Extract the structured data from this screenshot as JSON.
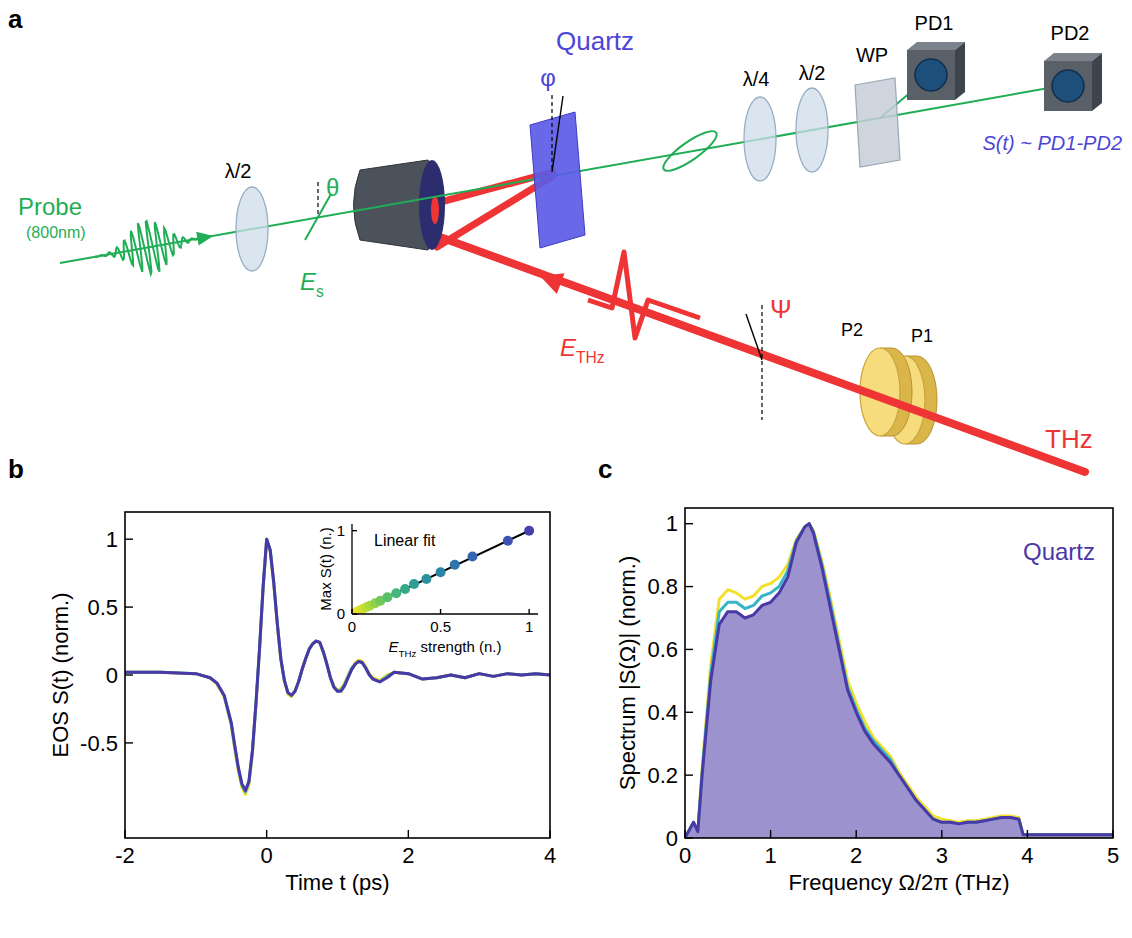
{
  "panel_letters": [
    "a",
    "b",
    "c"
  ],
  "diagram": {
    "probe": "Probe",
    "probe_wavelength": "(800nm)",
    "half_wave_1": "λ/2",
    "theta": "θ",
    "probe_field": [
      "E",
      "s"
    ],
    "crystal": "Quartz",
    "phi": "φ",
    "quarter_wave": "λ/4",
    "half_wave_2": "λ/2",
    "wollaston": "WP",
    "pd1": "PD1",
    "pd2": "PD2",
    "signal": "S(t) ~ PD1-PD2",
    "thz_field": [
      "E",
      "THz"
    ],
    "psi": "Ψ",
    "polarizer_2": "P2",
    "polarizer_1": "P1",
    "thz": "THz"
  },
  "chart_data": [
    {
      "type": "line",
      "xlabel": "Time t (ps)",
      "ylabel": "EOS S(t) (norm.)",
      "x": [
        -2,
        -1.5,
        -1,
        -0.8,
        -0.7,
        -0.6,
        -0.5,
        -0.45,
        -0.4,
        -0.35,
        -0.3,
        -0.25,
        -0.2,
        -0.15,
        -0.1,
        -0.05,
        0,
        0.05,
        0.1,
        0.15,
        0.2,
        0.25,
        0.3,
        0.35,
        0.4,
        0.45,
        0.5,
        0.55,
        0.6,
        0.65,
        0.7,
        0.75,
        0.8,
        0.85,
        0.9,
        0.95,
        1.0,
        1.05,
        1.1,
        1.15,
        1.2,
        1.25,
        1.3,
        1.35,
        1.4,
        1.45,
        1.5,
        1.6,
        1.7,
        1.8,
        2.0,
        2.2,
        2.4,
        2.6,
        2.8,
        3.0,
        3.2,
        3.4,
        3.6,
        3.8,
        4.0
      ],
      "xlim": [
        -2,
        4
      ],
      "xticks": [
        -2,
        0,
        2,
        4
      ],
      "ylim": [
        -1.2,
        1.2
      ],
      "yticks": [
        -0.5,
        0,
        0.5,
        1
      ],
      "series": [
        {
          "color": "#f2e02c",
          "values": [
            0.02,
            0.02,
            0.01,
            -0.02,
            -0.07,
            -0.16,
            -0.37,
            -0.55,
            -0.71,
            -0.83,
            -0.88,
            -0.81,
            -0.57,
            -0.21,
            0.19,
            0.64,
            0.99,
            0.91,
            0.67,
            0.37,
            0.11,
            -0.05,
            -0.14,
            -0.16,
            -0.12,
            -0.05,
            0.04,
            0.12,
            0.19,
            0.23,
            0.25,
            0.24,
            0.17,
            0.08,
            -0.02,
            -0.08,
            -0.11,
            -0.1,
            -0.06,
            0.0,
            0.05,
            0.09,
            0.11,
            0.1,
            0.06,
            0.01,
            -0.02,
            -0.04,
            0.0,
            0.02,
            0.01,
            -0.03,
            -0.02,
            0.0,
            -0.02,
            0.01,
            -0.01,
            0.01,
            0.0,
            0.01,
            0.0
          ]
        },
        {
          "color": "#38b4c8",
          "values": [
            0.02,
            0.02,
            0.01,
            -0.02,
            -0.06,
            -0.15,
            -0.36,
            -0.53,
            -0.69,
            -0.81,
            -0.86,
            -0.79,
            -0.56,
            -0.2,
            0.2,
            0.65,
            1.0,
            0.92,
            0.68,
            0.38,
            0.12,
            -0.04,
            -0.13,
            -0.15,
            -0.12,
            -0.05,
            0.04,
            0.12,
            0.19,
            0.23,
            0.25,
            0.24,
            0.17,
            0.08,
            -0.02,
            -0.09,
            -0.12,
            -0.11,
            -0.07,
            -0.01,
            0.05,
            0.08,
            0.1,
            0.09,
            0.05,
            0.0,
            -0.03,
            -0.05,
            -0.01,
            0.02,
            0.01,
            -0.03,
            -0.02,
            0.0,
            -0.02,
            0.01,
            -0.01,
            0.01,
            0.0,
            0.01,
            0.0
          ]
        },
        {
          "color": "#4a38a6",
          "values": [
            0.02,
            0.02,
            0.01,
            -0.02,
            -0.06,
            -0.15,
            -0.35,
            -0.52,
            -0.68,
            -0.8,
            -0.85,
            -0.78,
            -0.55,
            -0.2,
            0.2,
            0.65,
            1.0,
            0.92,
            0.68,
            0.38,
            0.12,
            -0.04,
            -0.13,
            -0.15,
            -0.12,
            -0.05,
            0.04,
            0.12,
            0.19,
            0.23,
            0.25,
            0.24,
            0.17,
            0.08,
            -0.02,
            -0.09,
            -0.12,
            -0.12,
            -0.08,
            -0.02,
            0.04,
            0.08,
            0.1,
            0.09,
            0.05,
            0.0,
            -0.03,
            -0.05,
            -0.02,
            0.02,
            0.01,
            -0.03,
            -0.02,
            0.0,
            -0.02,
            0.01,
            -0.01,
            0.01,
            0.0,
            0.01,
            0.0
          ]
        }
      ]
    },
    {
      "type": "scatter",
      "xlabel": [
        "E",
        "THz",
        " strength (n.)"
      ],
      "ylabel": "Max S(t) (n.)",
      "xlim": [
        0,
        1.05
      ],
      "xticks": [
        0,
        0.5,
        1
      ],
      "ylim": [
        0,
        1.08
      ],
      "yticks": [
        0,
        1
      ],
      "series": [
        {
          "name": "Linear fit",
          "type": "line",
          "line_style": "solid",
          "color": "#000000",
          "x": [
            0,
            1.02
          ],
          "values": [
            0,
            1.02
          ]
        },
        {
          "type": "scatter",
          "marker": "circle",
          "x": [
            0.02,
            0.04,
            0.06,
            0.08,
            0.1,
            0.13,
            0.16,
            0.2,
            0.25,
            0.3,
            0.35,
            0.42,
            0.5,
            0.58,
            0.68,
            0.88,
            1.0
          ],
          "values": [
            0.02,
            0.04,
            0.06,
            0.08,
            0.1,
            0.13,
            0.16,
            0.2,
            0.25,
            0.3,
            0.36,
            0.42,
            0.5,
            0.59,
            0.69,
            0.88,
            1.0
          ],
          "colors": [
            "#f3e52a",
            "#e4e22a",
            "#d2e12c",
            "#bfdd33",
            "#a8d83b",
            "#8fd14a",
            "#72c85a",
            "#58bf6b",
            "#44b57b",
            "#36aa88",
            "#2f9e94",
            "#2b919d",
            "#2a84a6",
            "#2e75ad",
            "#3465b3",
            "#3d51b5",
            "#4640ae"
          ]
        }
      ]
    },
    {
      "type": "line",
      "xlabel": "Frequency Ω/2π (THz)",
      "ylabel": "Spectrum |S(Ω)| (norm.)",
      "annotation": "Quartz",
      "x": [
        0,
        0.1,
        0.15,
        0.2,
        0.3,
        0.4,
        0.5,
        0.6,
        0.7,
        0.8,
        0.9,
        1.0,
        1.1,
        1.2,
        1.3,
        1.4,
        1.45,
        1.5,
        1.6,
        1.7,
        1.8,
        1.9,
        2.0,
        2.1,
        2.2,
        2.3,
        2.4,
        2.5,
        2.6,
        2.7,
        2.8,
        2.9,
        3.0,
        3.1,
        3.2,
        3.3,
        3.4,
        3.5,
        3.6,
        3.7,
        3.8,
        3.9,
        3.95,
        4.0,
        4.5,
        5.0
      ],
      "xlim": [
        0,
        5
      ],
      "xticks": [
        0,
        1,
        2,
        3,
        4,
        5
      ],
      "ylim": [
        0,
        1.05
      ],
      "yticks": [
        0,
        0.2,
        0.4,
        0.6,
        0.8,
        1
      ],
      "series": [
        {
          "color": "#f2e02c",
          "values": [
            0,
            0.05,
            0.02,
            0.22,
            0.55,
            0.76,
            0.79,
            0.78,
            0.76,
            0.77,
            0.8,
            0.81,
            0.83,
            0.87,
            0.95,
            0.99,
            1.0,
            0.98,
            0.88,
            0.76,
            0.63,
            0.5,
            0.43,
            0.37,
            0.32,
            0.29,
            0.26,
            0.21,
            0.17,
            0.13,
            0.1,
            0.07,
            0.06,
            0.055,
            0.05,
            0.055,
            0.055,
            0.06,
            0.065,
            0.07,
            0.07,
            0.065,
            0.01,
            0.01,
            0.01,
            0.01
          ]
        },
        {
          "color": "#38b4c8",
          "values": [
            0,
            0.05,
            0.02,
            0.21,
            0.52,
            0.72,
            0.75,
            0.75,
            0.73,
            0.74,
            0.77,
            0.78,
            0.8,
            0.85,
            0.945,
            0.99,
            1.0,
            0.975,
            0.87,
            0.745,
            0.61,
            0.48,
            0.41,
            0.35,
            0.31,
            0.28,
            0.25,
            0.2,
            0.16,
            0.12,
            0.09,
            0.06,
            0.05,
            0.05,
            0.045,
            0.05,
            0.05,
            0.055,
            0.06,
            0.065,
            0.065,
            0.06,
            0.01,
            0.01,
            0.01,
            0.01
          ]
        },
        {
          "type": "area",
          "color": "#4a38a6",
          "values": [
            0,
            0.05,
            0.02,
            0.2,
            0.5,
            0.68,
            0.72,
            0.72,
            0.7,
            0.71,
            0.74,
            0.75,
            0.78,
            0.83,
            0.94,
            0.99,
            1.0,
            0.97,
            0.86,
            0.73,
            0.6,
            0.47,
            0.4,
            0.34,
            0.3,
            0.27,
            0.24,
            0.2,
            0.16,
            0.12,
            0.09,
            0.06,
            0.05,
            0.05,
            0.045,
            0.05,
            0.05,
            0.055,
            0.06,
            0.065,
            0.065,
            0.06,
            0.01,
            0.01,
            0.01,
            0.01
          ]
        }
      ]
    }
  ]
}
